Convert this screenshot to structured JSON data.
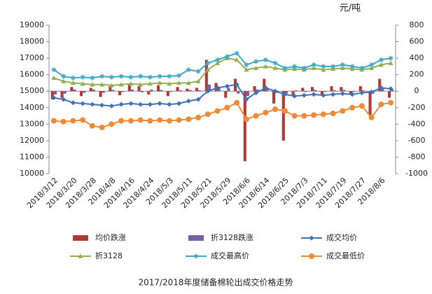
{
  "chart_data": {
    "type": "combo",
    "title": "2017/2018年度储备棉轮出成交价格走势",
    "y2_unit": "元/吨",
    "categories": [
      "2018/3/12",
      null,
      "2018/3/20",
      null,
      "2018/3/28",
      null,
      "2018/4/8",
      null,
      "2018/4/16",
      null,
      "2018/4/24",
      null,
      "2018/5/3",
      null,
      "2018/5/11",
      null,
      "2018/5/21",
      null,
      "2018/5/29",
      null,
      "2018/6/6",
      null,
      "2018/6/14",
      null,
      "2018/6/25",
      null,
      "2018/7/3",
      null,
      "2018/7/11",
      null,
      "2018/7/19",
      null,
      "2018/7/27",
      null,
      "2018/8/6",
      null
    ],
    "ylim": [
      10000,
      19000
    ],
    "yticks": [
      10000,
      11000,
      12000,
      13000,
      14000,
      15000,
      16000,
      17000,
      18000,
      19000
    ],
    "y2lim": [
      -1000,
      800
    ],
    "y2ticks": [
      -1000,
      -800,
      -600,
      -400,
      -200,
      0,
      200,
      400,
      600,
      800
    ],
    "legend": "bottom",
    "series": [
      {
        "name": "均价跌涨",
        "type": "bar",
        "axis": "y2",
        "color": "#b03a38",
        "values": [
          -100,
          -80,
          50,
          -60,
          40,
          -70,
          60,
          -50,
          80,
          60,
          -40,
          70,
          -60,
          50,
          30,
          40,
          380,
          100,
          -80,
          150,
          -850,
          60,
          150,
          -150,
          -600,
          -50,
          40,
          50,
          -40,
          60,
          50,
          -30,
          60,
          -300,
          150,
          -80
        ]
      },
      {
        "name": "折3128跌涨",
        "type": "bar",
        "axis": "y2",
        "color": "#7b5ea7",
        "values": [
          -40,
          -30,
          20,
          -20,
          20,
          -20,
          15,
          -10,
          20,
          -15,
          20,
          15,
          -10,
          10,
          15,
          10,
          80,
          50,
          40,
          -30,
          -60,
          20,
          30,
          -20,
          -30,
          10,
          -10,
          15,
          -10,
          10,
          15,
          -10,
          10,
          -30,
          40,
          20
        ]
      },
      {
        "name": "成交均价",
        "type": "line",
        "marker": "diamond",
        "color": "#3f72b5",
        "values": [
          14600,
          14500,
          14300,
          14250,
          14200,
          14150,
          14100,
          14200,
          14250,
          14200,
          14200,
          14250,
          14200,
          14250,
          14400,
          14500,
          15000,
          15200,
          15300,
          15400,
          14500,
          14900,
          15200,
          15000,
          14800,
          14700,
          14750,
          14800,
          14750,
          14800,
          14850,
          14800,
          14900,
          14950,
          15200,
          15150
        ]
      },
      {
        "name": "折3128",
        "type": "line",
        "marker": "triangle",
        "color": "#92b050",
        "values": [
          15800,
          15600,
          15500,
          15450,
          15400,
          15400,
          15350,
          15400,
          15450,
          15400,
          15450,
          15500,
          15450,
          15500,
          15500,
          15600,
          16300,
          16700,
          17000,
          16900,
          16300,
          16400,
          16500,
          16400,
          16300,
          16350,
          16300,
          16400,
          16300,
          16350,
          16400,
          16350,
          16300,
          16400,
          16600,
          16700
        ]
      },
      {
        "name": "成交最高价",
        "type": "line",
        "marker": "star",
        "color": "#3fa8c8",
        "values": [
          16300,
          15900,
          15800,
          15850,
          15800,
          15900,
          15850,
          15900,
          15850,
          15900,
          15850,
          15900,
          15900,
          15950,
          16300,
          16200,
          16700,
          16900,
          17100,
          17300,
          16600,
          16800,
          16900,
          16700,
          16400,
          16500,
          16400,
          16600,
          16500,
          16500,
          16600,
          16500,
          16400,
          16600,
          16900,
          17000
        ]
      },
      {
        "name": "成交最低价",
        "type": "line",
        "marker": "circle",
        "color": "#ef8a35",
        "values": [
          13200,
          13150,
          13200,
          13250,
          12900,
          12800,
          13000,
          13200,
          13200,
          13250,
          13200,
          13250,
          13200,
          13250,
          13300,
          13400,
          13600,
          13800,
          14000,
          14300,
          13300,
          13500,
          13700,
          13900,
          13800,
          13500,
          13500,
          13550,
          13600,
          13650,
          13800,
          14000,
          14100,
          13400,
          14200,
          14300
        ]
      }
    ]
  }
}
